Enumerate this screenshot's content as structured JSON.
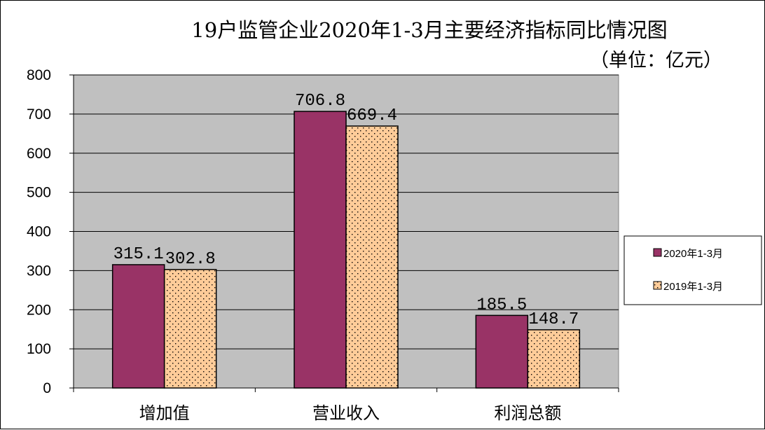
{
  "chart_data": {
    "type": "bar",
    "title": "19户监管企业2020年1-3月主要经济指标同比情况图",
    "unit_label": "（单位：亿元）",
    "categories": [
      "增加值",
      "营业收入",
      "利润总额"
    ],
    "series": [
      {
        "name": "2020年1-3月",
        "values": [
          315.1,
          706.8,
          185.5
        ],
        "labels": [
          "315.1",
          "706.8",
          "185.5"
        ],
        "color": "#993366"
      },
      {
        "name": "2019年1-3月",
        "values": [
          302.8,
          669.4,
          148.7
        ],
        "labels": [
          "302.8",
          "669.4",
          "148.7"
        ],
        "color": "#FFCC99"
      }
    ],
    "ylim": [
      0,
      800
    ],
    "yticks": [
      "0",
      "100",
      "200",
      "300",
      "400",
      "500",
      "600",
      "700",
      "800"
    ],
    "grid": true,
    "plot_background": "#C0C0C0",
    "legend_position": "right"
  }
}
